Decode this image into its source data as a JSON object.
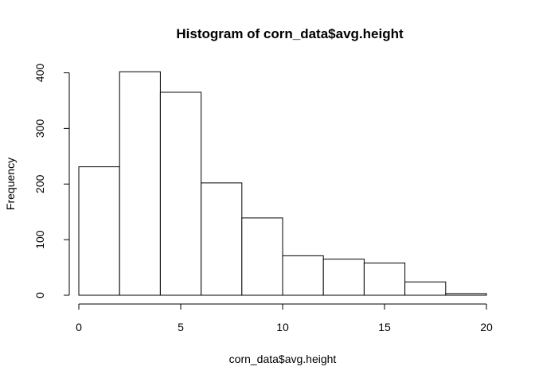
{
  "chart_data": {
    "type": "bar",
    "title": "Histogram of corn_data$avg.height",
    "xlabel": "corn_data$avg.height",
    "ylabel": "Frequency",
    "bins": [
      {
        "from": 0,
        "to": 2,
        "count": 231
      },
      {
        "from": 2,
        "to": 4,
        "count": 402
      },
      {
        "from": 4,
        "to": 6,
        "count": 365
      },
      {
        "from": 6,
        "to": 8,
        "count": 202
      },
      {
        "from": 8,
        "to": 10,
        "count": 139
      },
      {
        "from": 10,
        "to": 12,
        "count": 71
      },
      {
        "from": 12,
        "to": 14,
        "count": 65
      },
      {
        "from": 14,
        "to": 16,
        "count": 58
      },
      {
        "from": 16,
        "to": 18,
        "count": 24
      },
      {
        "from": 18,
        "to": 20,
        "count": 3
      }
    ],
    "xlim": [
      0,
      20
    ],
    "ylim": [
      0,
      410
    ],
    "x_ticks": [
      0,
      5,
      10,
      15,
      20
    ],
    "y_ticks": [
      0,
      100,
      200,
      300,
      400
    ],
    "grid": false,
    "bar_fill": "#ffffff",
    "bar_stroke": "#000000"
  }
}
